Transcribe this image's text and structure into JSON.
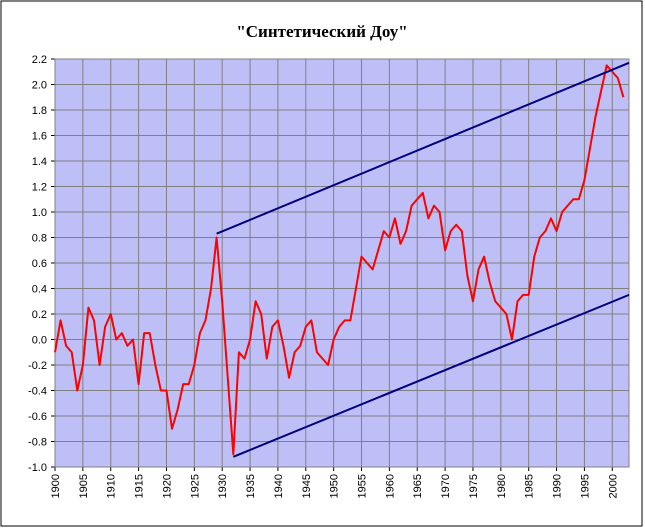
{
  "chart_data": {
    "type": "line",
    "title": "\"Синтетический Доу\"",
    "xlim": [
      1900,
      2003
    ],
    "xticks": [
      1900,
      1905,
      1910,
      1915,
      1920,
      1925,
      1930,
      1935,
      1940,
      1945,
      1950,
      1955,
      1960,
      1965,
      1970,
      1975,
      1980,
      1985,
      1990,
      1995,
      2000
    ],
    "ylim": [
      -1.0,
      2.2
    ],
    "yticks": [
      {
        "value": -1.0,
        "label": "-1.0"
      },
      -0.8,
      -0.6,
      -0.4,
      -0.2,
      {
        "value": 0,
        "label": "0.0"
      },
      0.2,
      0.4,
      0.6,
      0.8,
      {
        "value": 1.0,
        "label": "1.0"
      },
      1.2,
      1.4,
      1.6,
      1.8,
      {
        "value": 2.0,
        "label": "2.0"
      },
      2.2
    ],
    "grid": true,
    "background": "#bfbff7",
    "series": [
      {
        "color": "#ff0000",
        "x": [
          1900,
          1901,
          1902,
          1903,
          1904,
          1905,
          1906,
          1907,
          1908,
          1909,
          1910,
          1911,
          1912,
          1913,
          1914,
          1915,
          1916,
          1917,
          1918,
          1919,
          1920,
          1921,
          1922,
          1923,
          1924,
          1925,
          1926,
          1927,
          1928,
          1929,
          1930,
          1931,
          1932,
          1933,
          1934,
          1935,
          1936,
          1937,
          1938,
          1939,
          1940,
          1941,
          1942,
          1943,
          1944,
          1945,
          1946,
          1947,
          1948,
          1949,
          1950,
          1951,
          1952,
          1953,
          1954,
          1955,
          1956,
          1957,
          1958,
          1959,
          1960,
          1961,
          1962,
          1963,
          1964,
          1965,
          1966,
          1967,
          1968,
          1969,
          1970,
          1971,
          1972,
          1973,
          1974,
          1975,
          1976,
          1977,
          1978,
          1979,
          1980,
          1981,
          1982,
          1983,
          1984,
          1985,
          1986,
          1987,
          1988,
          1989,
          1990,
          1991,
          1992,
          1993,
          1994,
          1995,
          1996,
          1997,
          1998,
          1999,
          2000,
          2001,
          2002
        ],
        "values": [
          -0.1,
          0.15,
          -0.05,
          -0.1,
          -0.4,
          -0.2,
          0.25,
          0.15,
          -0.2,
          0.1,
          0.2,
          0.0,
          0.05,
          -0.05,
          0.0,
          -0.35,
          0.05,
          0.05,
          -0.2,
          -0.4,
          -0.4,
          -0.7,
          -0.55,
          -0.35,
          -0.35,
          -0.2,
          0.05,
          0.15,
          0.4,
          0.8,
          0.3,
          -0.3,
          -0.9,
          -0.1,
          -0.15,
          0.0,
          0.3,
          0.2,
          -0.15,
          0.1,
          0.15,
          -0.05,
          -0.3,
          -0.1,
          -0.05,
          0.1,
          0.15,
          -0.1,
          -0.15,
          -0.2,
          0.0,
          0.1,
          0.15,
          0.15,
          0.4,
          0.65,
          0.6,
          0.55,
          0.7,
          0.85,
          0.8,
          0.95,
          0.75,
          0.85,
          1.05,
          1.1,
          1.15,
          0.95,
          1.05,
          1.0,
          0.7,
          0.85,
          0.9,
          0.85,
          0.5,
          0.3,
          0.55,
          0.65,
          0.45,
          0.3,
          0.25,
          0.2,
          0.0,
          0.3,
          0.35,
          0.35,
          0.65,
          0.8,
          0.85,
          0.95,
          0.85,
          1.0,
          1.05,
          1.1,
          1.1,
          1.25,
          1.5,
          1.75,
          1.95,
          2.15,
          2.1,
          2.05,
          1.9
        ]
      },
      {
        "color": "#000080",
        "x": [
          1929,
          2003
        ],
        "values": [
          0.83,
          2.17
        ]
      },
      {
        "color": "#000080",
        "x": [
          1932,
          2003
        ],
        "values": [
          -0.92,
          0.35
        ]
      }
    ]
  }
}
